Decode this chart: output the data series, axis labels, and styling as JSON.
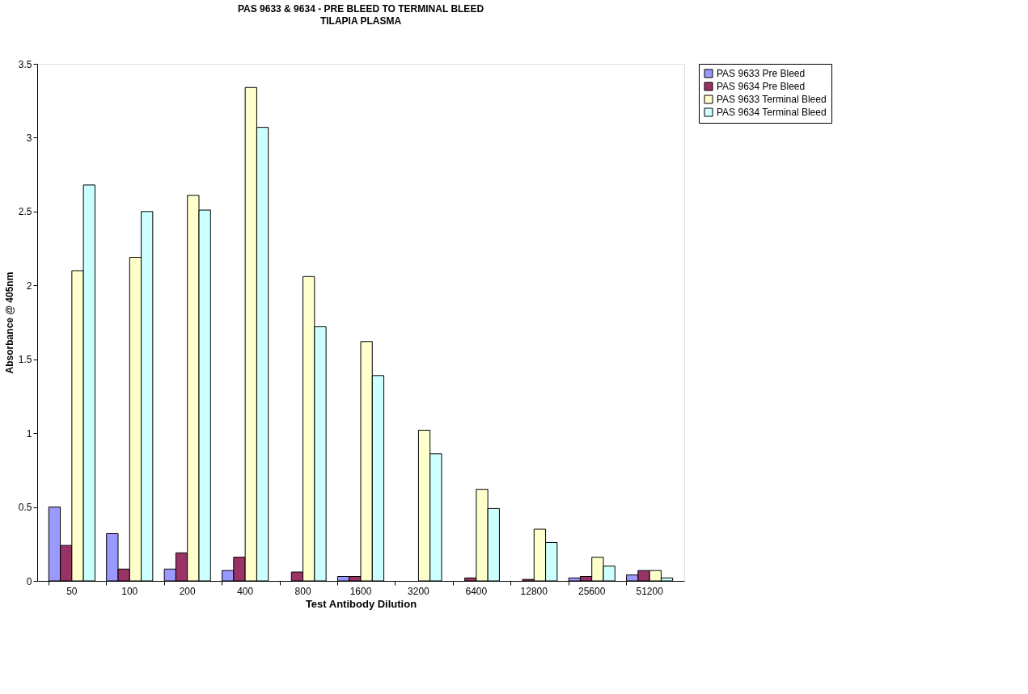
{
  "chart_data": {
    "type": "bar",
    "title": "PAS 9633 & 9634 - PRE BLEED TO TERMINAL BLEED",
    "subtitle": "TILAPIA PLASMA",
    "xlabel": "Test Antibody Dilution",
    "ylabel": "Absorbance @ 405nm",
    "categories": [
      "50",
      "100",
      "200",
      "400",
      "800",
      "1600",
      "3200",
      "6400",
      "12800",
      "25600",
      "51200"
    ],
    "series": [
      {
        "name": "PAS 9633 Pre Bleed",
        "color": "#9999ff",
        "values": [
          0.5,
          0.32,
          0.08,
          0.07,
          0,
          0.03,
          0,
          0,
          0,
          0.02,
          0.04
        ]
      },
      {
        "name": "PAS 9634 Pre Bleed",
        "color": "#993366",
        "values": [
          0.24,
          0.08,
          0.19,
          0.16,
          0.06,
          0.03,
          0,
          0.02,
          0.01,
          0.03,
          0.07
        ]
      },
      {
        "name": "PAS 9633 Terminal Bleed",
        "color": "#ffffcc",
        "values": [
          2.1,
          2.19,
          2.61,
          3.34,
          2.06,
          1.62,
          1.02,
          0.62,
          0.35,
          0.16,
          0.07
        ]
      },
      {
        "name": "PAS 9634 Terminal Bleed",
        "color": "#ccffff",
        "values": [
          2.68,
          2.5,
          2.51,
          3.07,
          1.72,
          1.39,
          0.86,
          0.49,
          0.26,
          0.1,
          0.02
        ]
      }
    ],
    "ylim": [
      0,
      3.5
    ],
    "yticks": [
      0,
      0.5,
      1,
      1.5,
      2,
      2.5,
      3,
      3.5
    ],
    "grid": false,
    "legend": "right"
  }
}
